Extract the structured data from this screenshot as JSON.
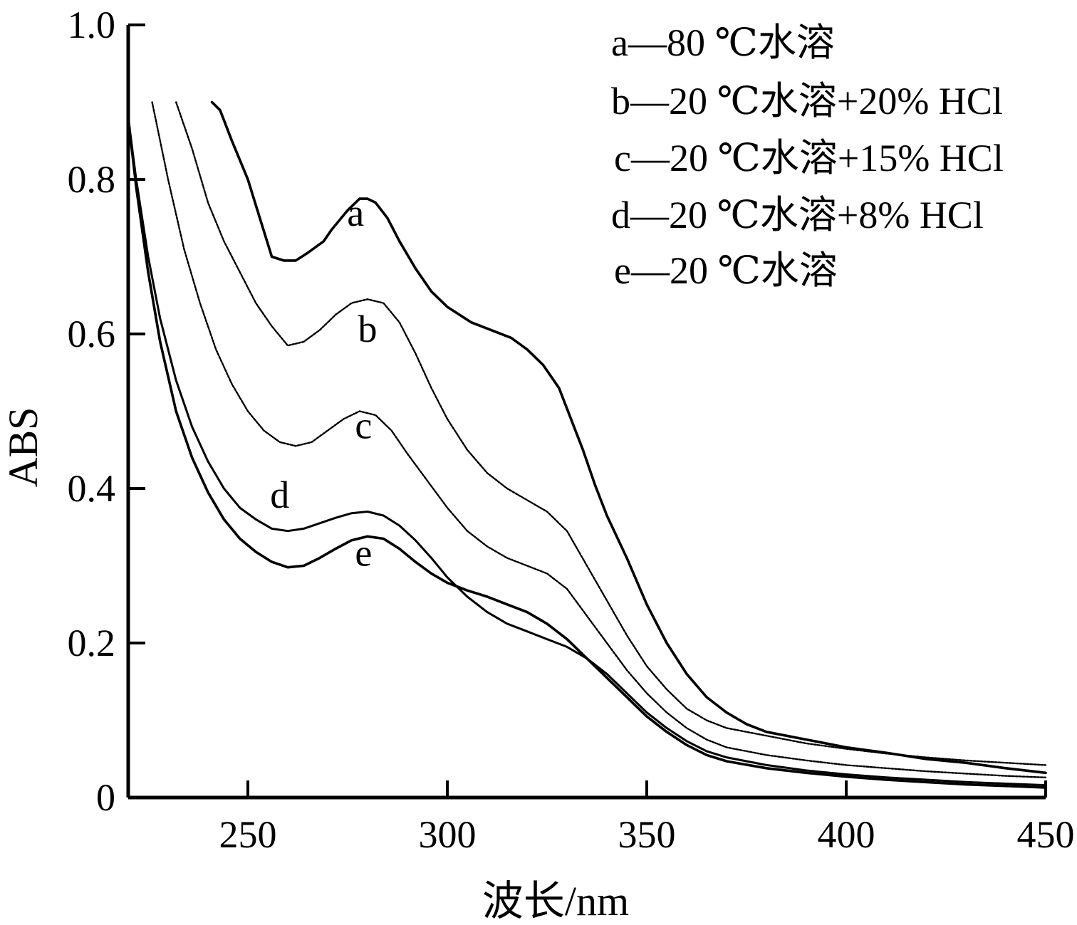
{
  "chart_data": {
    "type": "line",
    "title": "",
    "xlabel": "波长/nm",
    "ylabel": "ABS",
    "xlim": [
      220,
      450
    ],
    "ylim": [
      0,
      1.0
    ],
    "x_ticks": [
      250,
      300,
      350,
      400,
      450
    ],
    "x_tick_labels": [
      "250",
      "300",
      "350",
      "400",
      "450"
    ],
    "y_ticks": [
      0,
      0.2,
      0.4,
      0.6,
      0.8,
      1.0
    ],
    "y_tick_labels": [
      "0",
      "0.2",
      "0.4",
      "0.6",
      "0.8",
      "1.0"
    ],
    "grid": false,
    "legend_position": "top-right",
    "series": [
      {
        "name": "a—80 ℃水溶",
        "label": "a",
        "label_at": [
          277,
          0.74
        ],
        "x": [
          241,
          243,
          246,
          250,
          253,
          256,
          259,
          262,
          265,
          269,
          271,
          275,
          278,
          280,
          282,
          285,
          288,
          292,
          296,
          300,
          306,
          311,
          316,
          320,
          324,
          328,
          331,
          334,
          337,
          340,
          345,
          350,
          355,
          360,
          365,
          370,
          375,
          380,
          390,
          400,
          410,
          420,
          430,
          440,
          450
        ],
        "y": [
          0.9,
          0.89,
          0.85,
          0.8,
          0.75,
          0.7,
          0.695,
          0.695,
          0.705,
          0.72,
          0.735,
          0.76,
          0.775,
          0.775,
          0.77,
          0.75,
          0.72,
          0.685,
          0.655,
          0.635,
          0.615,
          0.605,
          0.595,
          0.58,
          0.56,
          0.53,
          0.49,
          0.45,
          0.405,
          0.365,
          0.31,
          0.25,
          0.2,
          0.16,
          0.13,
          0.11,
          0.095,
          0.085,
          0.075,
          0.065,
          0.058,
          0.05,
          0.045,
          0.038,
          0.032
        ]
      },
      {
        "name": "b—20 ℃水溶+20% HCl",
        "label": "b",
        "label_at": [
          280,
          0.59
        ],
        "x": [
          232,
          236,
          240,
          244,
          248,
          252,
          256,
          260,
          264,
          268,
          272,
          276,
          280,
          284,
          288,
          292,
          296,
          300,
          305,
          310,
          315,
          320,
          325,
          330,
          335,
          340,
          345,
          350,
          355,
          360,
          365,
          370,
          380,
          390,
          400,
          410,
          420,
          430,
          440,
          450
        ],
        "y": [
          0.9,
          0.84,
          0.77,
          0.72,
          0.68,
          0.64,
          0.61,
          0.585,
          0.59,
          0.605,
          0.625,
          0.64,
          0.645,
          0.64,
          0.615,
          0.575,
          0.53,
          0.49,
          0.45,
          0.42,
          0.4,
          0.385,
          0.37,
          0.345,
          0.3,
          0.255,
          0.21,
          0.17,
          0.14,
          0.115,
          0.1,
          0.09,
          0.08,
          0.07,
          0.063,
          0.057,
          0.052,
          0.048,
          0.045,
          0.042
        ]
      },
      {
        "name": "c—20 ℃水溶+15% HCl",
        "label": "c",
        "label_at": [
          279,
          0.465
        ],
        "x": [
          226,
          230,
          234,
          238,
          242,
          246,
          250,
          254,
          258,
          262,
          266,
          270,
          274,
          278,
          282,
          286,
          290,
          295,
          300,
          305,
          310,
          315,
          320,
          325,
          330,
          335,
          340,
          345,
          350,
          355,
          360,
          365,
          370,
          380,
          390,
          400,
          410,
          420,
          430,
          440,
          450
        ],
        "y": [
          0.9,
          0.8,
          0.71,
          0.64,
          0.58,
          0.535,
          0.5,
          0.475,
          0.46,
          0.455,
          0.46,
          0.475,
          0.49,
          0.5,
          0.495,
          0.475,
          0.445,
          0.41,
          0.375,
          0.345,
          0.325,
          0.31,
          0.3,
          0.29,
          0.27,
          0.235,
          0.2,
          0.165,
          0.135,
          0.11,
          0.09,
          0.075,
          0.065,
          0.055,
          0.048,
          0.042,
          0.038,
          0.034,
          0.031,
          0.028,
          0.026
        ]
      },
      {
        "name": "d—20 ℃水溶+8% HCl",
        "label": "d",
        "label_at": [
          258,
          0.375
        ],
        "x": [
          220,
          222,
          225,
          228,
          232,
          236,
          240,
          244,
          248,
          252,
          256,
          260,
          264,
          268,
          272,
          276,
          280,
          284,
          288,
          292,
          296,
          300,
          305,
          310,
          315,
          320,
          325,
          330,
          335,
          340,
          345,
          350,
          355,
          360,
          365,
          370,
          380,
          390,
          400,
          410,
          420,
          430,
          440,
          450
        ],
        "y": [
          0.88,
          0.8,
          0.7,
          0.62,
          0.54,
          0.48,
          0.435,
          0.4,
          0.375,
          0.36,
          0.348,
          0.345,
          0.348,
          0.355,
          0.362,
          0.368,
          0.37,
          0.365,
          0.352,
          0.333,
          0.31,
          0.285,
          0.26,
          0.24,
          0.225,
          0.215,
          0.205,
          0.195,
          0.18,
          0.16,
          0.135,
          0.11,
          0.09,
          0.073,
          0.06,
          0.052,
          0.042,
          0.035,
          0.03,
          0.026,
          0.023,
          0.02,
          0.018,
          0.016
        ]
      },
      {
        "name": "e—20 ℃水溶",
        "label": "e",
        "label_at": [
          279,
          0.3
        ],
        "x": [
          220,
          222,
          225,
          228,
          232,
          236,
          240,
          244,
          248,
          252,
          256,
          260,
          264,
          268,
          272,
          276,
          280,
          284,
          288,
          292,
          296,
          300,
          305,
          310,
          315,
          320,
          325,
          330,
          335,
          340,
          345,
          350,
          355,
          360,
          365,
          370,
          380,
          390,
          400,
          410,
          420,
          430,
          440,
          450
        ],
        "y": [
          0.88,
          0.79,
          0.68,
          0.59,
          0.5,
          0.44,
          0.395,
          0.36,
          0.335,
          0.318,
          0.305,
          0.298,
          0.3,
          0.31,
          0.322,
          0.333,
          0.338,
          0.335,
          0.322,
          0.305,
          0.29,
          0.278,
          0.268,
          0.26,
          0.25,
          0.24,
          0.225,
          0.205,
          0.18,
          0.155,
          0.13,
          0.105,
          0.085,
          0.068,
          0.055,
          0.047,
          0.038,
          0.032,
          0.027,
          0.023,
          0.02,
          0.017,
          0.015,
          0.013
        ]
      }
    ]
  }
}
